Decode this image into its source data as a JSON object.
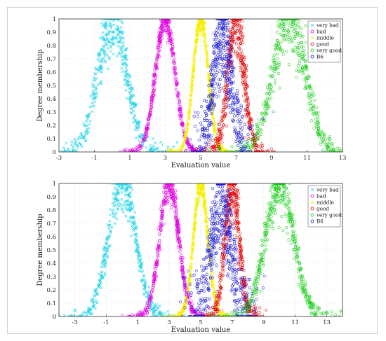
{
  "chart_data": [
    {
      "type": "scatter",
      "xlabel": "Evaluation value",
      "ylabel": "Degree membership",
      "xlim": [
        -3,
        13
      ],
      "ylim": [
        0,
        1
      ],
      "xticks": [
        "-3",
        "-1",
        "1",
        "3",
        "5",
        "7",
        "9",
        "11",
        "13"
      ],
      "yticks": [
        "0",
        "0.1",
        "0.2",
        "0.3",
        "0.4",
        "0.5",
        "0.6",
        "0.7",
        "0.8",
        "0.9",
        "1"
      ],
      "grid": true,
      "legend_position": "top-right",
      "series": [
        {
          "name": "very bad",
          "marker": "x",
          "color": "#22d3e6",
          "center": 0,
          "sigma": 0.8,
          "spread": 0.1
        },
        {
          "name": "bad",
          "marker": "o",
          "color": "#e000e0",
          "center": 3,
          "sigma": 0.55,
          "spread": 0.04
        },
        {
          "name": "middle",
          "marker": "x",
          "color": "#f5f000",
          "center": 5,
          "sigma": 0.42,
          "spread": 0.035
        },
        {
          "name": "good",
          "marker": "o",
          "color": "#e60000",
          "center": 7,
          "sigma": 0.45,
          "spread": 0.12
        },
        {
          "name": "very good",
          "marker": "o",
          "color": "#16cc16",
          "center": 10,
          "sigma": 0.9,
          "spread": 0.1
        },
        {
          "name": "B6",
          "marker": "o",
          "color": "#1a1ad8",
          "center": 6.2,
          "sigma": 0.45,
          "spread": 0.45
        }
      ]
    },
    {
      "type": "scatter",
      "xlabel": "Evaluation value",
      "ylabel": "Degree membership",
      "xlim": [
        -4,
        14
      ],
      "ylim": [
        0,
        1
      ],
      "xticks": [
        "-3",
        "-1",
        "1",
        "3",
        "5",
        "7",
        "9",
        "11",
        "13"
      ],
      "yticks": [
        "0",
        "0.1",
        "0.2",
        "0.3",
        "0.4",
        "0.5",
        "0.6",
        "0.7",
        "0.8",
        "0.9",
        "1"
      ],
      "grid": true,
      "legend_position": "top-right",
      "series": [
        {
          "name": "very bad",
          "marker": "x",
          "color": "#22d3e6",
          "center": 0,
          "sigma": 0.85,
          "spread": 0.08
        },
        {
          "name": "bad",
          "marker": "o",
          "color": "#e000e0",
          "center": 3,
          "sigma": 0.6,
          "spread": 0.05
        },
        {
          "name": "middle",
          "marker": "x",
          "color": "#f5f000",
          "center": 5,
          "sigma": 0.45,
          "spread": 0.04
        },
        {
          "name": "good",
          "marker": "o",
          "color": "#e60000",
          "center": 7,
          "sigma": 0.45,
          "spread": 0.12
        },
        {
          "name": "very good",
          "marker": "o",
          "color": "#16cc16",
          "center": 10,
          "sigma": 0.9,
          "spread": 0.08
        },
        {
          "name": "B6",
          "marker": "o",
          "color": "#1a1ad8",
          "center": 6.3,
          "sigma": 0.55,
          "spread": 0.5
        }
      ]
    }
  ]
}
